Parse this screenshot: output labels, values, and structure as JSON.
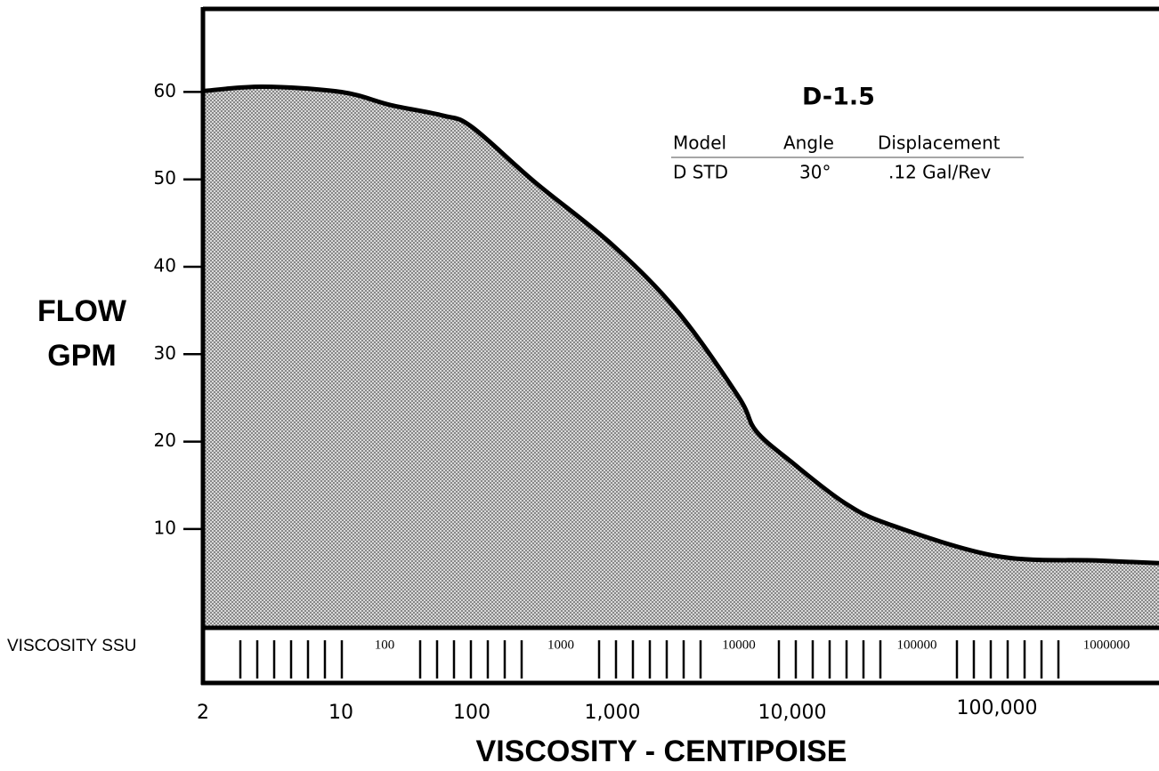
{
  "chart_data": {
    "type": "area",
    "ylabel": [
      "FLOW",
      "GPM"
    ],
    "xlabel": "VISCOSITY - CENTIPOISE",
    "log_x": true,
    "x": [
      2,
      4,
      10,
      24,
      60,
      100,
      280,
      1000,
      2300,
      5000,
      6300,
      10000,
      18000,
      30000,
      100000,
      300000,
      600000
    ],
    "values": [
      60.1,
      60.6,
      60,
      58.5,
      57.3,
      56,
      49.7,
      42.5,
      34.9,
      25.2,
      21.2,
      17.6,
      13,
      10.5,
      6.9,
      6.4,
      6.1
    ],
    "color": "#000000",
    "fill": "#999999",
    "xlim": [
      2,
      600000
    ],
    "xticks": [
      2,
      10,
      100,
      {
        "value": 1000,
        "label": "1,000"
      },
      {
        "value": 10000,
        "label": "10,000"
      },
      {
        "value": 100000,
        "label": "100,000"
      }
    ],
    "ylim": [
      -1.3,
      69.5
    ],
    "yticks": [
      10,
      20,
      30,
      40,
      50,
      60
    ],
    "ssu_title": "VISCOSITY SSU",
    "ssu_labels": [
      "100",
      "1000",
      "10000",
      "100000",
      "1000000"
    ],
    "panel": {
      "title": "D-1.5",
      "header": [
        "Model",
        "Angle",
        "Displacement"
      ],
      "row": [
        "D STD",
        "30°",
        ".12 Gal/Rev"
      ]
    }
  }
}
